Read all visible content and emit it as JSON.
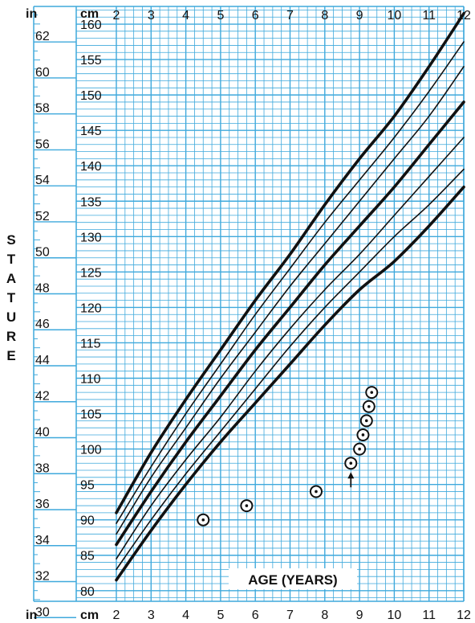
{
  "chart_data": {
    "type": "line",
    "title": "",
    "xlabel": "AGE (YEARS)",
    "ylabel_letters": [
      "S",
      "T",
      "A",
      "T",
      "U",
      "R",
      "E"
    ],
    "left_unit_top": "in",
    "left_unit_bottom": "in",
    "cm_unit_top": "cm",
    "cm_unit_bottom": "cm",
    "xlim": [
      2,
      12
    ],
    "ylim_cm": [
      78.5,
      162.5
    ],
    "x_ticks": [
      2,
      3,
      4,
      5,
      6,
      7,
      8,
      9,
      10,
      11,
      12
    ],
    "x_tick_labels": [
      "2",
      "3",
      "4",
      "5",
      "6",
      "7",
      "8",
      "9",
      "10",
      "11",
      "12"
    ],
    "cm_ticks": [
      80,
      85,
      90,
      95,
      100,
      105,
      110,
      115,
      120,
      125,
      130,
      135,
      140,
      145,
      150,
      155,
      160
    ],
    "cm_tick_labels": [
      "80",
      "85",
      "90",
      "95",
      "100",
      "105",
      "110",
      "115",
      "120",
      "125",
      "130",
      "135",
      "140",
      "145",
      "150",
      "155",
      "160"
    ],
    "in_ticks": [
      30,
      32,
      34,
      36,
      38,
      40,
      42,
      44,
      46,
      48,
      50,
      52,
      54,
      56,
      58,
      60,
      62
    ],
    "in_tick_labels": [
      "30",
      "32",
      "34",
      "36",
      "38",
      "40",
      "42",
      "44",
      "46",
      "48",
      "50",
      "52",
      "54",
      "56",
      "58",
      "60",
      "62"
    ],
    "colors": {
      "grid": "#3fa9dc",
      "curve": "#111111",
      "text": "#111111",
      "background": "#ffffff"
    },
    "series": [
      {
        "bold": true,
        "x": [
          2,
          3,
          4,
          5,
          6,
          7,
          8,
          9,
          10,
          11,
          12
        ],
        "y": [
          81.5,
          88.5,
          95,
          101,
          106.5,
          112,
          117.5,
          122.5,
          126.5,
          131.5,
          137
        ]
      },
      {
        "bold": false,
        "x": [
          2,
          3,
          4,
          5,
          6,
          7,
          8,
          9,
          10,
          11,
          12
        ],
        "y": [
          83,
          90,
          96.5,
          102.5,
          108.5,
          114.5,
          120,
          125,
          130,
          134.5,
          139.5
        ]
      },
      {
        "bold": false,
        "x": [
          2,
          3,
          4,
          5,
          6,
          7,
          8,
          9,
          10,
          11,
          12
        ],
        "y": [
          84.5,
          92,
          98.5,
          104.5,
          111,
          117,
          122.5,
          127.5,
          133,
          138.5,
          144
        ]
      },
      {
        "bold": true,
        "x": [
          2,
          3,
          4,
          5,
          6,
          7,
          8,
          9,
          10,
          11,
          12
        ],
        "y": [
          86.5,
          94,
          101,
          107.5,
          114,
          120,
          126,
          131.5,
          137,
          143,
          149
        ]
      },
      {
        "bold": false,
        "x": [
          2,
          3,
          4,
          5,
          6,
          7,
          8,
          9,
          10,
          11,
          12
        ],
        "y": [
          88,
          96,
          103,
          110,
          116.5,
          123,
          129,
          135,
          141,
          147,
          154
        ]
      },
      {
        "bold": false,
        "x": [
          2,
          3,
          4,
          5,
          6,
          7,
          8,
          9,
          10,
          11,
          12
        ],
        "y": [
          89.5,
          97.5,
          105,
          112,
          119,
          125.5,
          132,
          138,
          144,
          150.5,
          157.5
        ]
      },
      {
        "bold": true,
        "x": [
          2,
          3,
          4,
          5,
          6,
          7,
          8,
          9,
          10,
          11,
          12
        ],
        "y": [
          91,
          99.5,
          107,
          114,
          121,
          127.5,
          134.5,
          141,
          147,
          154,
          161.5
        ]
      }
    ],
    "measurements": [
      {
        "x": 4.5,
        "y": 90
      },
      {
        "x": 5.75,
        "y": 92
      },
      {
        "x": 7.75,
        "y": 94
      },
      {
        "x": 8.75,
        "y": 98
      },
      {
        "x": 9.0,
        "y": 100
      },
      {
        "x": 9.1,
        "y": 102
      },
      {
        "x": 9.2,
        "y": 104
      },
      {
        "x": 9.27,
        "y": 106
      },
      {
        "x": 9.35,
        "y": 108
      }
    ],
    "arrow_at": {
      "x": 8.75,
      "y": 98
    }
  }
}
